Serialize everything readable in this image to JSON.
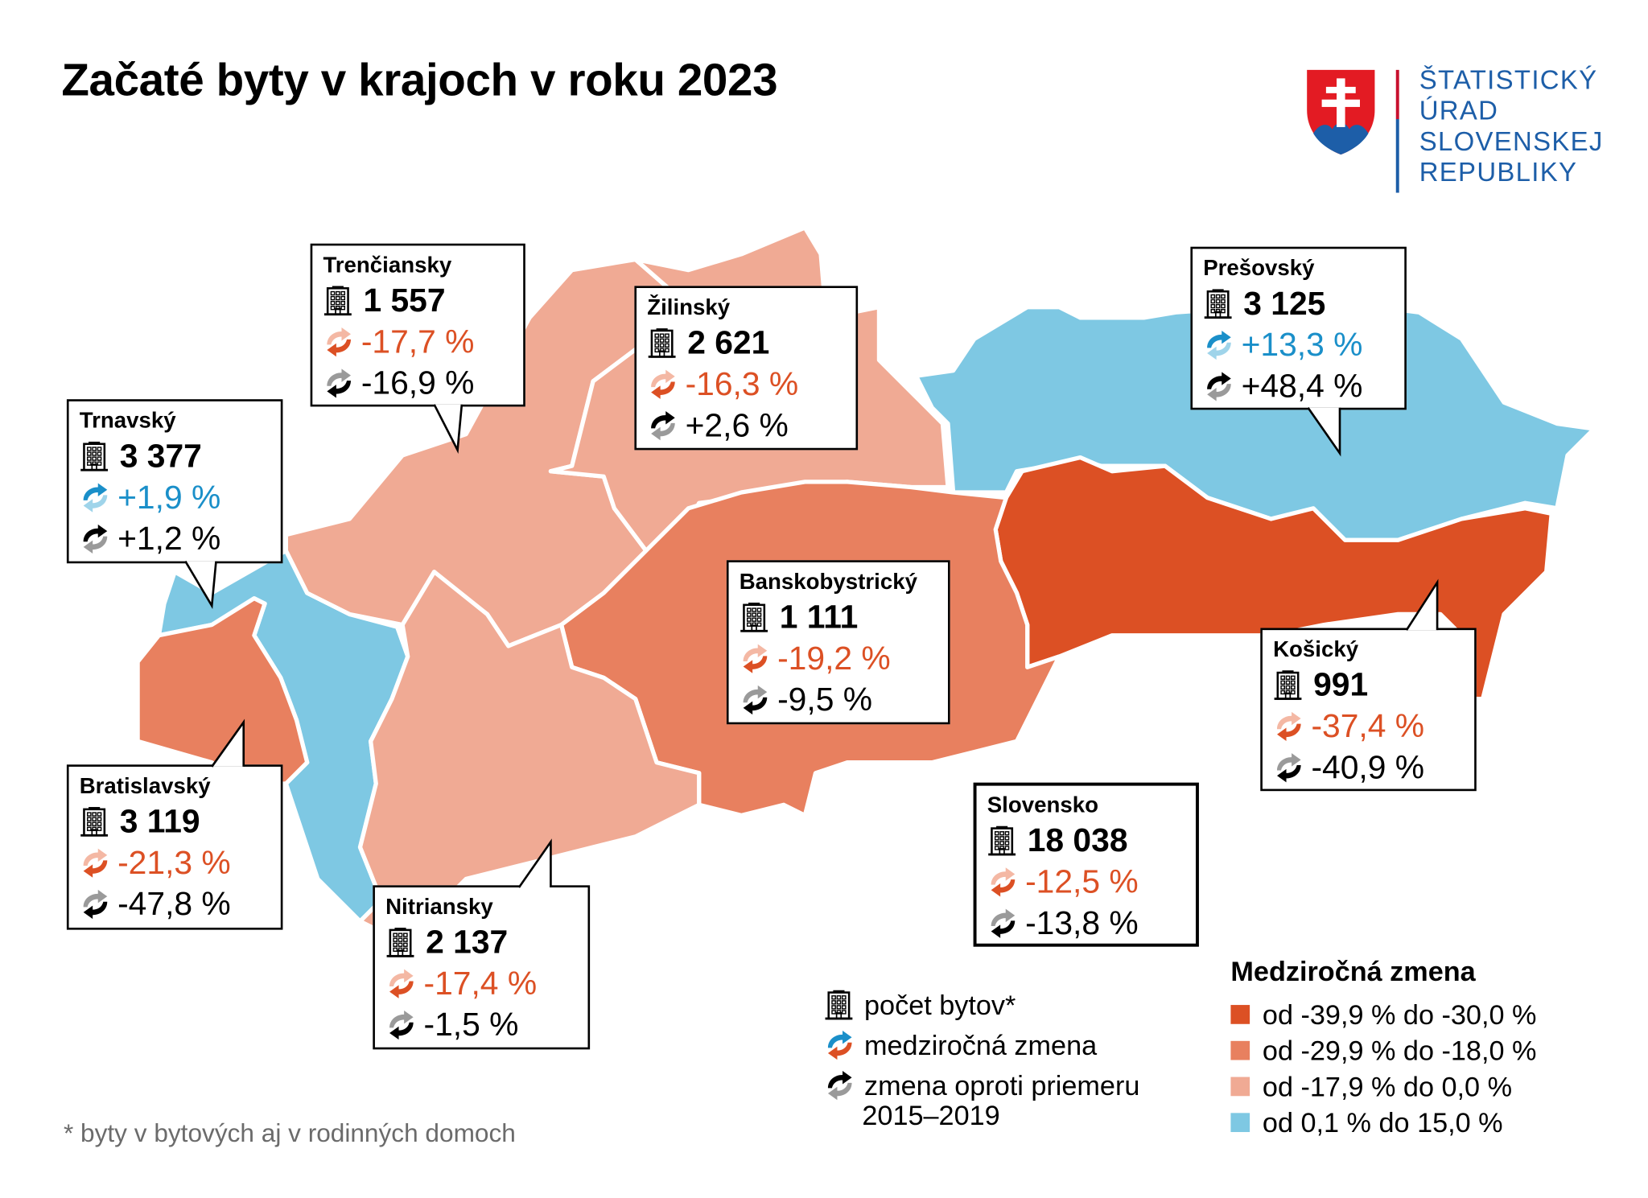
{
  "title": "Začaté byty v krajoch v roku 2023",
  "logo": {
    "lines": [
      "ŠTATISTICKÝ",
      "ÚRAD",
      "SLOVENSKEJ",
      "REPUBLIKY"
    ],
    "colors": {
      "red": "#c8102e",
      "blue": "#1d5ea8"
    }
  },
  "colors": {
    "negative_text": "#dc5024",
    "positive_text": "#1a8fc9"
  },
  "regions": [
    {
      "name": "Trenčiansky",
      "count": "1 557",
      "yoy": "-17,7 %",
      "avg": "-16,9 %",
      "fill": "#f0aa94",
      "yoy_sign": "neg",
      "avg_sign": "neg"
    },
    {
      "name": "Trnavský",
      "count": "3 377",
      "yoy": "+1,9 %",
      "avg": "+1,2 %",
      "fill": "#7ec8e3",
      "yoy_sign": "pos",
      "avg_sign": "pos"
    },
    {
      "name": "Žilinský",
      "count": "2 621",
      "yoy": "-16,3 %",
      "avg": "+2,6 %",
      "fill": "#f0aa94",
      "yoy_sign": "neg",
      "avg_sign": "pos"
    },
    {
      "name": "Prešovský",
      "count": "3 125",
      "yoy": "+13,3 %",
      "avg": "+48,4 %",
      "fill": "#7ec8e3",
      "yoy_sign": "pos",
      "avg_sign": "pos"
    },
    {
      "name": "Banskobystrický",
      "count": "1 111",
      "yoy": "-19,2 %",
      "avg": "-9,5 %",
      "fill": "#e8805f",
      "yoy_sign": "neg",
      "avg_sign": "neg"
    },
    {
      "name": "Bratislavský",
      "count": "3 119",
      "yoy": "-21,3 %",
      "avg": "-47,8 %",
      "fill": "#e8805f",
      "yoy_sign": "neg",
      "avg_sign": "neg"
    },
    {
      "name": "Nitriansky",
      "count": "2 137",
      "yoy": "-17,4 %",
      "avg": "-1,5 %",
      "fill": "#f0aa94",
      "yoy_sign": "neg",
      "avg_sign": "neg"
    },
    {
      "name": "Košický",
      "count": "991",
      "yoy": "-37,4 %",
      "avg": "-40,9 %",
      "fill": "#dc5024",
      "yoy_sign": "neg",
      "avg_sign": "neg"
    },
    {
      "name": "Slovensko",
      "count": "18 038",
      "yoy": "-12,5 %",
      "avg": "-13,8 %",
      "fill": null,
      "yoy_sign": "neg",
      "avg_sign": "neg"
    }
  ],
  "symbol_legend": {
    "count": "počet bytov*",
    "yoy": "medziročná zmena",
    "avg_line1": "zmena oproti priemeru",
    "avg_line2": "2015–2019"
  },
  "color_legend": {
    "title": "Medziročná zmena",
    "items": [
      {
        "label": "od -39,9 % do -30,0 %",
        "color": "#dc5024"
      },
      {
        "label": "od -29,9 % do -18,0 %",
        "color": "#e8805f"
      },
      {
        "label": "od -17,9 % do 0,0 %",
        "color": "#f0aa94"
      },
      {
        "label": "od 0,1 % do 15,0 %",
        "color": "#7ec8e3"
      }
    ]
  },
  "footnote": "* byty v bytových aj v rodinných domoch"
}
